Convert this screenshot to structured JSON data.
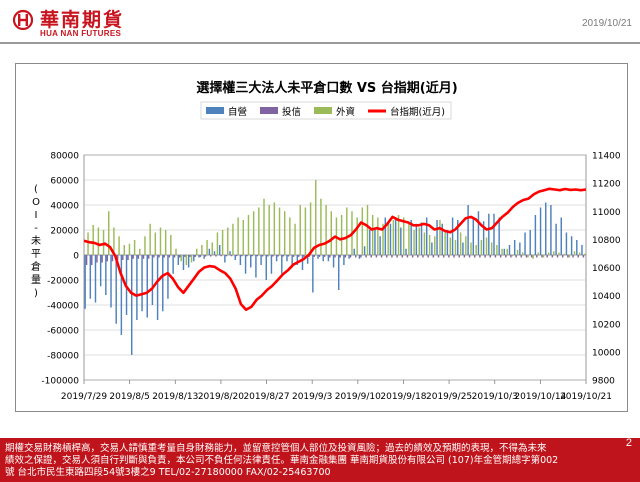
{
  "header": {
    "logo_cn": "華南期貨",
    "logo_en": "HUA NAN FUTURES",
    "date": "2019/10/21"
  },
  "colors": {
    "brand_red": "#c8141e",
    "dealer": "#4f81bd",
    "trust": "#8064a2",
    "foreign": "#9bbb59",
    "index_line": "#ff0000"
  },
  "footer": {
    "lines": [
      "期權交易財務槓桿高，交易人請慎重考量自身財務能力，並留意控管個人部位及投資風險；過去的績效及預期的表現，不得為未來",
      "績效之保證，交易人須自行判斷與負責，本公司不負任何法律責任。華南金融集團 華南期貨股份有限公司 (107)年金管期總字第002",
      "號 台北市民生東路四段54號3樓之9 TEL/02-27180000 FAX/02-25463700"
    ],
    "page": "2"
  },
  "chart_data": {
    "type": "bar+line",
    "title": "選擇權三大法人未平倉口數 VS 台指期(近月)",
    "ylabel": "(OI-未平倉量)",
    "ylim": [
      -100000,
      80000
    ],
    "y2lim": [
      9800,
      11400
    ],
    "yticks": [
      "80000",
      "60000",
      "40000",
      "20000",
      "0",
      "-20000",
      "-40000",
      "-60000",
      "-80000",
      "-100000"
    ],
    "y2ticks": [
      "11400",
      "11200",
      "11000",
      "10800",
      "10600",
      "10400",
      "10200",
      "10000",
      "9800"
    ],
    "xticks": [
      "2019/7/29",
      "2019/8/5",
      "2019/8/13",
      "2019/8/20",
      "2019/8/27",
      "2019/9/3",
      "2019/9/10",
      "2019/9/18",
      "2019/9/25",
      "2019/10/3",
      "2019/10/14",
      "2019/10/21"
    ],
    "legend": [
      "自營",
      "投信",
      "外資",
      "台指期(近月)"
    ],
    "series": [
      {
        "name": "自營",
        "values": [
          -43000,
          -35000,
          -38000,
          -25000,
          -32000,
          -42000,
          -55000,
          -64000,
          -48000,
          -80000,
          -52000,
          -45000,
          -50000,
          -40000,
          -52000,
          -45000,
          -35000,
          -15000,
          -8000,
          -12000,
          -10000,
          -5000,
          -2000,
          -3000,
          5000,
          3000,
          8000,
          -6000,
          3000,
          -4000,
          -8000,
          -15000,
          -10000,
          -18000,
          -8000,
          -20000,
          -15000,
          -5000,
          -15000,
          -5000,
          -10000,
          -8000,
          -12000,
          -7000,
          -30000,
          -3000,
          -5000,
          -5000,
          -10000,
          -28000,
          -8000,
          -3000,
          5000,
          -3000,
          7000,
          20000,
          22000,
          15000,
          30000,
          25000,
          30000,
          22000,
          5000,
          28000,
          25000,
          26000,
          30000,
          10000,
          28000,
          25000,
          20000,
          30000,
          28000,
          10000,
          40000,
          30000,
          35000,
          27000,
          33000,
          33000,
          30000,
          5000,
          8000,
          12000,
          10000,
          18000,
          20000,
          32000,
          38000,
          42000,
          40000,
          25000,
          30000,
          18000,
          15000,
          12000,
          8000
        ]
      },
      {
        "name": "投信",
        "values": [
          -8000,
          -8000,
          -6000,
          -6000,
          -5000,
          -5000,
          -4000,
          -4000,
          -4000,
          -3000,
          -3000,
          -3000,
          -3000,
          -2000,
          -2000,
          -2000,
          -2000,
          -2000,
          -2000,
          -1500,
          -1500,
          -1500,
          -1500,
          -1200,
          -1200,
          -1200,
          -1000,
          -1000,
          -1000,
          -1000,
          -1000,
          -1000,
          -1000,
          -1000,
          -1200,
          -1200,
          -1200,
          -1200,
          -1200,
          -1200,
          -1500,
          -1500,
          -1500,
          -1500,
          -1500,
          -1500,
          -1500,
          -2000,
          -2000,
          -2000,
          -2000,
          -2000,
          -2000,
          -2000,
          -2000,
          -2000,
          -2000,
          -2000,
          -2000,
          -2000,
          -2000,
          -2000,
          -2000,
          -2000,
          -2000,
          -2000,
          -2000,
          -2000,
          -2000,
          -2000,
          -2000,
          -2000,
          -2000,
          -2000,
          -2000,
          -2000,
          -2000,
          -2000,
          -2000,
          -2000,
          -2000,
          -2000,
          -2000,
          -2000,
          -2000,
          -2000,
          -2000,
          -2000,
          -2000,
          -2000,
          -2000,
          -2000,
          -2000,
          -2000,
          -2000,
          -2000,
          -2000
        ]
      },
      {
        "name": "外資",
        "values": [
          18000,
          24000,
          22000,
          20000,
          35000,
          22000,
          15000,
          8000,
          9000,
          12000,
          5000,
          15000,
          25000,
          18000,
          22000,
          20000,
          16000,
          5000,
          -5000,
          -8000,
          -6000,
          5000,
          8000,
          12000,
          10000,
          18000,
          20000,
          22000,
          25000,
          30000,
          28000,
          32000,
          35000,
          38000,
          45000,
          40000,
          42000,
          38000,
          35000,
          30000,
          25000,
          40000,
          38000,
          42000,
          60000,
          45000,
          40000,
          35000,
          30000,
          32000,
          38000,
          35000,
          30000,
          38000,
          40000,
          32000,
          30000,
          25000,
          26000,
          28000,
          32000,
          30000,
          25000,
          20000,
          22000,
          18000,
          16000,
          15000,
          28000,
          20000,
          14000,
          12000,
          18000,
          15000,
          10000,
          8000,
          12000,
          14000,
          10000,
          8000,
          5000,
          5000,
          -1000,
          4000,
          2000,
          -2000,
          -3000,
          2000,
          -2000,
          2000,
          3000,
          2000,
          1000,
          -2000,
          3000,
          2000,
          1000
        ]
      },
      {
        "name": "台指期(近月)",
        "values": [
          10790,
          10780,
          10775,
          10760,
          10770,
          10745,
          10680,
          10560,
          10470,
          10420,
          10400,
          10410,
          10420,
          10450,
          10500,
          10540,
          10560,
          10520,
          10460,
          10420,
          10470,
          10520,
          10570,
          10600,
          10610,
          10605,
          10580,
          10560,
          10520,
          10450,
          10340,
          10300,
          10320,
          10370,
          10400,
          10440,
          10470,
          10510,
          10550,
          10580,
          10620,
          10640,
          10660,
          10690,
          10740,
          10760,
          10770,
          10790,
          10820,
          10800,
          10810,
          10830,
          10870,
          10920,
          10900,
          10870,
          10880,
          10870,
          10910,
          10960,
          10940,
          10930,
          10920,
          10900,
          10900,
          10910,
          10900,
          10870,
          10880,
          10860,
          10850,
          10870,
          10910,
          10950,
          10960,
          10940,
          10900,
          10870,
          10880,
          10920,
          10960,
          10990,
          11030,
          11060,
          11080,
          11090,
          11120,
          11140,
          11150,
          11160,
          11155,
          11150,
          11158,
          11152,
          11155,
          11150,
          11155
        ]
      }
    ]
  }
}
